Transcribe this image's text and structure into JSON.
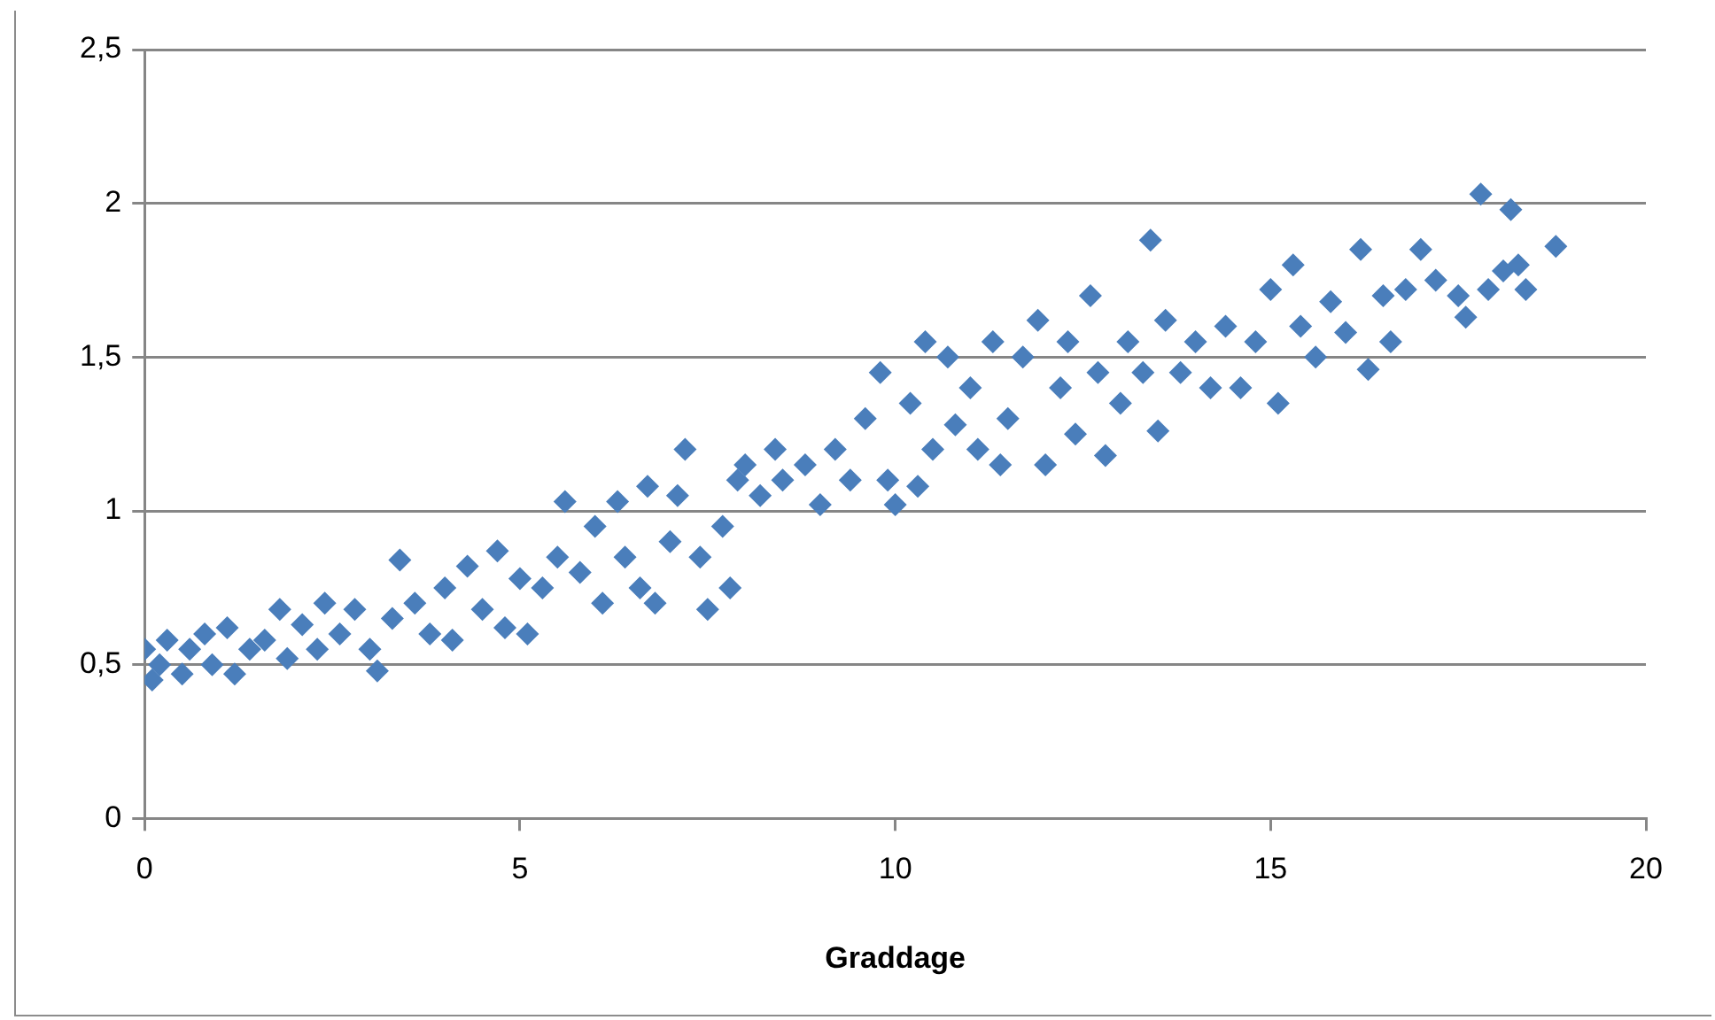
{
  "chart_data": {
    "type": "scatter",
    "xlabel": "Graddage",
    "marker": "diamond",
    "grid": "y",
    "legend": false,
    "xlim": [
      0,
      20
    ],
    "xticks": [
      0,
      5,
      10,
      15,
      20
    ],
    "ylim": [
      0,
      2.5
    ],
    "yticks": [
      0,
      {
        "value": 0.5,
        "label": "0,5"
      },
      1,
      {
        "value": 1.5,
        "label": "1,5"
      },
      2,
      {
        "value": 2.5,
        "label": "2,5"
      }
    ],
    "series": [
      {
        "color": "#4a7ebb",
        "x": [
          0,
          0.1,
          0.2,
          0.3,
          0.5,
          0.6,
          0.8,
          0.9,
          1.1,
          1.2,
          1.4,
          1.6,
          1.8,
          1.9,
          2.1,
          2.3,
          2.4,
          2.6,
          2.8,
          3.0,
          3.1,
          3.3,
          3.4,
          3.6,
          3.8,
          4.0,
          4.1,
          4.3,
          4.5,
          4.7,
          4.8,
          5.0,
          5.1,
          5.3,
          5.5,
          5.6,
          5.8,
          6.0,
          6.1,
          6.3,
          6.4,
          6.6,
          6.7,
          6.8,
          7.0,
          7.1,
          7.2,
          7.4,
          7.5,
          7.7,
          7.8,
          7.9,
          8.0,
          8.2,
          8.4,
          8.5,
          8.8,
          9.0,
          9.2,
          9.4,
          9.6,
          9.8,
          9.9,
          10.0,
          10.2,
          10.3,
          10.4,
          10.5,
          10.7,
          10.8,
          11.0,
          11.1,
          11.3,
          11.4,
          11.5,
          11.7,
          11.9,
          12.0,
          12.2,
          12.3,
          12.4,
          12.6,
          12.7,
          12.8,
          13.0,
          13.1,
          13.3,
          13.4,
          13.5,
          13.6,
          13.8,
          14.0,
          14.2,
          14.4,
          14.6,
          14.8,
          15.0,
          15.1,
          15.3,
          15.4,
          15.6,
          15.8,
          16.0,
          16.2,
          16.3,
          16.5,
          16.6,
          16.8,
          17.0,
          17.2,
          17.5,
          17.6,
          17.8,
          17.9,
          18.1,
          18.2,
          18.3,
          18.4,
          18.8
        ],
        "values": [
          0.55,
          0.45,
          0.5,
          0.58,
          0.47,
          0.55,
          0.6,
          0.5,
          0.62,
          0.47,
          0.55,
          0.58,
          0.68,
          0.52,
          0.63,
          0.55,
          0.7,
          0.6,
          0.68,
          0.55,
          0.48,
          0.65,
          0.84,
          0.7,
          0.6,
          0.75,
          0.58,
          0.82,
          0.68,
          0.87,
          0.62,
          0.78,
          0.6,
          0.75,
          0.85,
          1.03,
          0.8,
          0.95,
          0.7,
          1.03,
          0.85,
          0.75,
          1.08,
          0.7,
          0.9,
          1.05,
          1.2,
          0.85,
          0.68,
          0.95,
          0.75,
          1.1,
          1.15,
          1.05,
          1.2,
          1.1,
          1.15,
          1.02,
          1.2,
          1.1,
          1.3,
          1.45,
          1.1,
          1.02,
          1.35,
          1.08,
          1.55,
          1.2,
          1.5,
          1.28,
          1.4,
          1.2,
          1.55,
          1.15,
          1.3,
          1.5,
          1.62,
          1.15,
          1.4,
          1.55,
          1.25,
          1.7,
          1.45,
          1.18,
          1.35,
          1.55,
          1.45,
          1.88,
          1.26,
          1.62,
          1.45,
          1.55,
          1.4,
          1.6,
          1.4,
          1.55,
          1.72,
          1.35,
          1.8,
          1.6,
          1.5,
          1.68,
          1.58,
          1.85,
          1.46,
          1.7,
          1.55,
          1.72,
          1.85,
          1.75,
          1.7,
          1.63,
          2.03,
          1.72,
          1.78,
          1.98,
          1.8,
          1.72,
          1.86
        ]
      }
    ]
  }
}
